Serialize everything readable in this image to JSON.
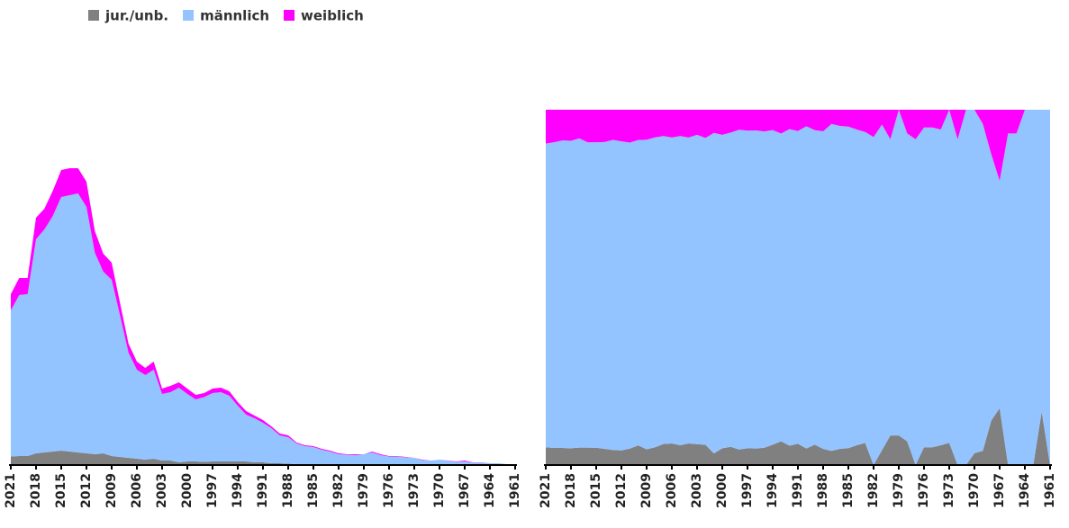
{
  "chart_data": {
    "type": "area",
    "categories": [
      "2021",
      null,
      null,
      "2018",
      null,
      null,
      "2015",
      null,
      null,
      "2012",
      null,
      null,
      "2009",
      null,
      null,
      "2006",
      null,
      null,
      "2003",
      null,
      null,
      "2000",
      null,
      null,
      "1997",
      null,
      null,
      "1994",
      null,
      null,
      "1991",
      null,
      null,
      "1988",
      null,
      null,
      "1985",
      null,
      null,
      "1982",
      null,
      null,
      "1979",
      null,
      null,
      "1976",
      null,
      null,
      "1973",
      null,
      null,
      "1970",
      null,
      null,
      "1967",
      null,
      null,
      "1964",
      null,
      null,
      "1961"
    ],
    "series": [
      {
        "name": "jur./unb.",
        "color": "#808080",
        "values": [
          9.5,
          10,
          10,
          13,
          14,
          15,
          16,
          15,
          14,
          13,
          12,
          13,
          10,
          9,
          8,
          7,
          6,
          7,
          5,
          5,
          3,
          4,
          4,
          3.5,
          4,
          4,
          4,
          4,
          4,
          3,
          3,
          2,
          2,
          1.5,
          1,
          1,
          1,
          1,
          1,
          0,
          0.5,
          1,
          1,
          1,
          0,
          0.5,
          0.5,
          0.5,
          0.5,
          0,
          0,
          0.2,
          0.2,
          0.5,
          0.8,
          0,
          0,
          0,
          0,
          0.15,
          0
        ]
      },
      {
        "name": "männlich",
        "color": "#94c4ff",
        "values": [
          162.4,
          179,
          180,
          238,
          248,
          262,
          282,
          285,
          288,
          274,
          224,
          202,
          196,
          157,
          117,
          99,
          94,
          99,
          74,
          76,
          83,
          75,
          69,
          72,
          76,
          77,
          73,
          62,
          52,
          49,
          44,
          39,
          31,
          29.5,
          23,
          20,
          19,
          16,
          14,
          12,
          11,
          10,
          11,
          13,
          11,
          9,
          9,
          8,
          7.5,
          5.5,
          5,
          5.8,
          4.6,
          3,
          3.2,
          2.8,
          2.8,
          2,
          2,
          0.85,
          1
        ]
      },
      {
        "name": "weiblich",
        "color": "#ff00ff",
        "values": [
          18.1,
          19,
          18,
          24,
          23,
          28,
          30,
          30,
          28,
          28,
          24,
          20,
          19,
          14,
          10,
          9,
          8,
          9,
          6,
          7,
          6,
          6,
          5,
          4.5,
          5,
          5,
          5,
          4,
          4,
          3,
          3,
          2,
          2,
          2,
          1,
          1,
          1,
          1,
          1,
          1,
          0.5,
          1,
          0,
          1,
          1,
          0.5,
          0.5,
          0.5,
          0,
          0.5,
          0,
          0,
          0.2,
          0.5,
          1,
          0.2,
          0.2,
          0,
          0,
          0,
          0
        ]
      }
    ]
  }
}
